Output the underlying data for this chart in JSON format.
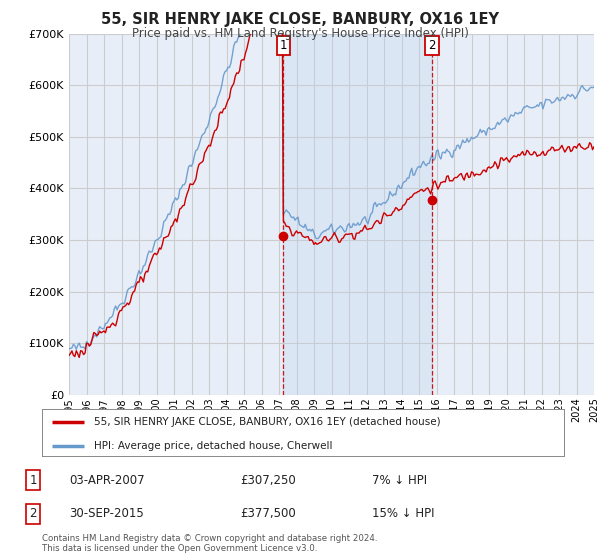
{
  "title": "55, SIR HENRY JAKE CLOSE, BANBURY, OX16 1EY",
  "subtitle": "Price paid vs. HM Land Registry's House Price Index (HPI)",
  "ylim": [
    0,
    700000
  ],
  "yticks": [
    0,
    100000,
    200000,
    300000,
    400000,
    500000,
    600000,
    700000
  ],
  "ytick_labels": [
    "£0",
    "£100K",
    "£200K",
    "£300K",
    "£400K",
    "£500K",
    "£600K",
    "£700K"
  ],
  "background_color": "#ffffff",
  "plot_bg_color": "#e8eef8",
  "grid_color": "#cccccc",
  "hpi_color": "#6699cc",
  "price_color": "#cc0000",
  "sale1_date": 2007.25,
  "sale1_price": 307250,
  "sale2_date": 2015.75,
  "sale2_price": 377500,
  "legend_price_label": "55, SIR HENRY JAKE CLOSE, BANBURY, OX16 1EY (detached house)",
  "legend_hpi_label": "HPI: Average price, detached house, Cherwell",
  "note1_num": "1",
  "note1_date": "03-APR-2007",
  "note1_price": "£307,250",
  "note1_hpi": "7% ↓ HPI",
  "note2_num": "2",
  "note2_date": "30-SEP-2015",
  "note2_price": "£377,500",
  "note2_hpi": "15% ↓ HPI",
  "footer": "Contains HM Land Registry data © Crown copyright and database right 2024.\nThis data is licensed under the Open Government Licence v3.0.",
  "xmin": 1995,
  "xmax": 2025
}
